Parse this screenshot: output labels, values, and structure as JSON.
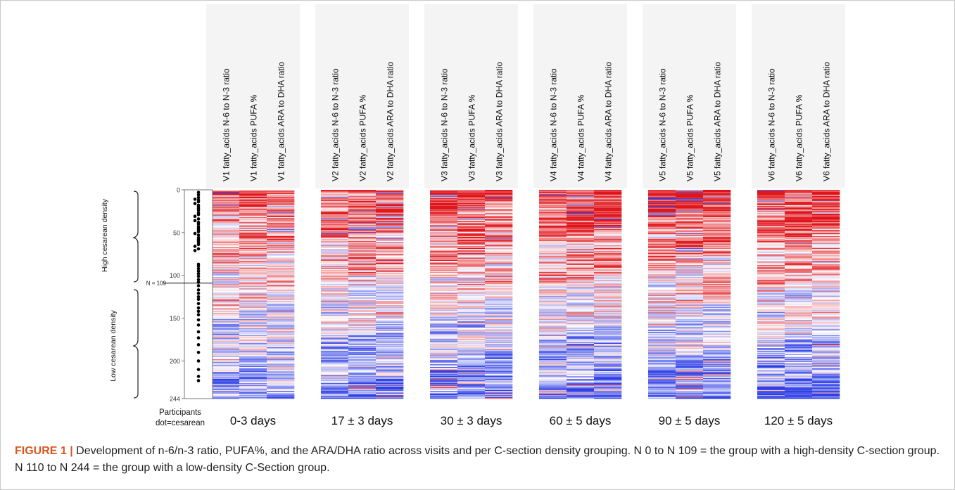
{
  "figure": {
    "label": "FIGURE 1 |",
    "caption": "Development of n-6/n-3 ratio, PUFA%, and the ARA/DHA ratio across visits and per C-section density grouping. N 0 to N 109 = the group with a high-density C-section group. N 110 to N 244 = the group with a low-density C-Section group."
  },
  "colors": {
    "high": "#e0141a",
    "low": "#2f3fe6",
    "mid": "#ffffff",
    "panel_bg": "#f4f4f4"
  },
  "left_panel": {
    "group_high": "High cesarean density",
    "group_low": "Low cesarean density",
    "n_marker": "N = 109",
    "xlabel_line1": "Participants",
    "xlabel_line2": "dot=cesarean"
  },
  "chart_data": {
    "type": "heatmap",
    "y_axis": {
      "ticks": [
        0,
        50,
        100,
        150,
        200,
        244
      ],
      "range": [
        0,
        244
      ],
      "reversed": true
    },
    "split_row": 109,
    "cesarean_rows": [
      3,
      6,
      9,
      11,
      12,
      14,
      16,
      18,
      20,
      22,
      24,
      27,
      29,
      31,
      34,
      36,
      38,
      40,
      43,
      45,
      47,
      49,
      51,
      53,
      56,
      58,
      60,
      62,
      64,
      66,
      69,
      71,
      87,
      89,
      92,
      95,
      98,
      101,
      105,
      108,
      112,
      117,
      121,
      125,
      128,
      133,
      138,
      142,
      146,
      152,
      158,
      166,
      173,
      181,
      190,
      200,
      210,
      218,
      223
    ],
    "visits": [
      {
        "label": "0-3 days",
        "columns": [
          "V1 fatty_acids N-6 to N-3 ratio",
          "V1 fatty_acids PUFA %",
          "V1 fatty_acids ARA to DHA ratio"
        ],
        "strength": 0.75
      },
      {
        "label": "17 ± 3 days",
        "columns": [
          "V2 fatty_acids N-6 to N-3 ratio",
          "V2 fatty_acids PUFA %",
          "V2 fatty_acids ARA to DHA ratio"
        ],
        "strength": 0.95
      },
      {
        "label": "30 ± 3 days",
        "columns": [
          "V3 fatty_acids N-6 to N-3 ratio",
          "V3 fatty_acids PUFA %",
          "V3 fatty_acids ARA to DHA ratio"
        ],
        "strength": 1.0
      },
      {
        "label": "60 ± 5 days",
        "columns": [
          "V4 fatty_acids N-6 to N-3 ratio",
          "V4 fatty_acids PUFA %",
          "V4 fatty_acids ARA to DHA ratio"
        ],
        "strength": 1.05
      },
      {
        "label": "90 ± 5 days",
        "columns": [
          "V5 fatty_acids N-6 to N-3 ratio",
          "V5 fatty_acids PUFA %",
          "V5 fatty_acids ARA to DHA ratio"
        ],
        "strength": 1.1
      },
      {
        "label": "120 ± 5 days",
        "columns": [
          "V6 fatty_acids N-6 to N-3 ratio",
          "V6 fatty_acids PUFA %",
          "V6 fatty_acids ARA to DHA ratio"
        ],
        "strength": 1.1
      }
    ]
  }
}
